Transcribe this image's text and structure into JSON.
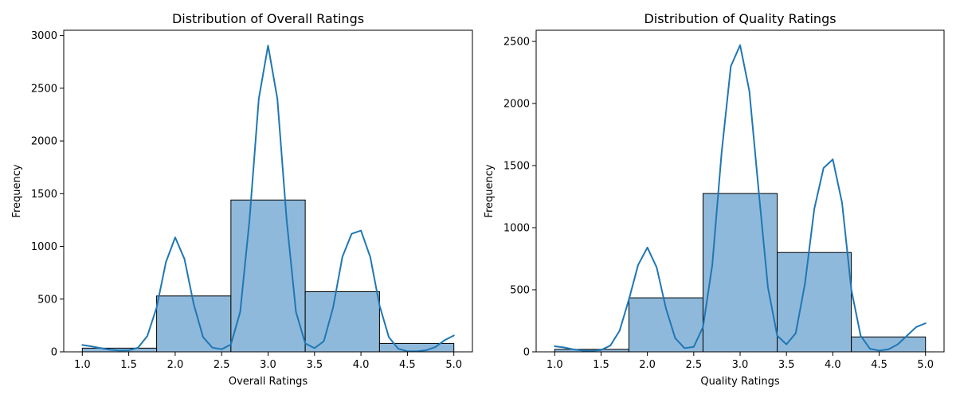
{
  "colors": {
    "bar_fill": "#8fb9db",
    "bar_edge": "#000000",
    "kde_line": "#1f77b4"
  },
  "chart_data": [
    {
      "type": "histogram",
      "title": "Distribution of Overall Ratings",
      "xlabel": "Overall Ratings",
      "ylabel": "Frequency",
      "xlim": [
        0.8,
        5.2
      ],
      "ylim": [
        0,
        3050
      ],
      "xticks": [
        1.0,
        1.5,
        2.0,
        2.5,
        3.0,
        3.5,
        4.0,
        4.5,
        5.0
      ],
      "xtick_labels": [
        "1.0",
        "1.5",
        "2.0",
        "2.5",
        "3.0",
        "3.5",
        "4.0",
        "4.5",
        "5.0"
      ],
      "yticks": [
        0,
        500,
        1000,
        1500,
        2000,
        2500,
        3000
      ],
      "ytick_labels": [
        "0",
        "500",
        "1000",
        "1500",
        "2000",
        "2500",
        "3000"
      ],
      "bins": [
        {
          "x0": 1.0,
          "x1": 1.8,
          "count": 35
        },
        {
          "x0": 1.8,
          "x1": 2.6,
          "count": 530
        },
        {
          "x0": 2.6,
          "x1": 3.4,
          "count": 1440
        },
        {
          "x0": 3.4,
          "x1": 4.2,
          "count": 570
        },
        {
          "x0": 4.2,
          "x1": 5.0,
          "count": 80
        }
      ],
      "kde": {
        "x": [
          1.0,
          1.1,
          1.2,
          1.3,
          1.4,
          1.5,
          1.6,
          1.7,
          1.8,
          1.9,
          2.0,
          2.1,
          2.2,
          2.3,
          2.4,
          2.5,
          2.6,
          2.7,
          2.8,
          2.9,
          3.0,
          3.1,
          3.2,
          3.3,
          3.4,
          3.5,
          3.6,
          3.7,
          3.8,
          3.9,
          4.0,
          4.1,
          4.2,
          4.3,
          4.4,
          4.5,
          4.6,
          4.7,
          4.8,
          4.9,
          5.0
        ],
        "y": [
          65,
          52,
          35,
          20,
          12,
          14,
          40,
          150,
          420,
          850,
          1085,
          880,
          450,
          140,
          40,
          25,
          70,
          380,
          1250,
          2400,
          2905,
          2400,
          1250,
          380,
          80,
          35,
          100,
          420,
          900,
          1120,
          1150,
          900,
          440,
          140,
          30,
          5,
          5,
          15,
          45,
          110,
          155
        ]
      }
    },
    {
      "type": "histogram",
      "title": "Distribution of Quality Ratings",
      "xlabel": "Quality Ratings",
      "ylabel": "Frequency",
      "xlim": [
        0.8,
        5.2
      ],
      "ylim": [
        0,
        2590
      ],
      "xticks": [
        1.0,
        1.5,
        2.0,
        2.5,
        3.0,
        3.5,
        4.0,
        4.5,
        5.0
      ],
      "xtick_labels": [
        "1.0",
        "1.5",
        "2.0",
        "2.5",
        "3.0",
        "3.5",
        "4.0",
        "4.5",
        "5.0"
      ],
      "yticks": [
        0,
        500,
        1000,
        1500,
        2000,
        2500
      ],
      "ytick_labels": [
        "0",
        "500",
        "1000",
        "1500",
        "2000",
        "2500"
      ],
      "bins": [
        {
          "x0": 1.0,
          "x1": 1.8,
          "count": 20
        },
        {
          "x0": 1.8,
          "x1": 2.6,
          "count": 435
        },
        {
          "x0": 2.6,
          "x1": 3.4,
          "count": 1275
        },
        {
          "x0": 3.4,
          "x1": 4.2,
          "count": 800
        },
        {
          "x0": 4.2,
          "x1": 5.0,
          "count": 120
        }
      ],
      "kde": {
        "x": [
          1.0,
          1.1,
          1.2,
          1.3,
          1.4,
          1.5,
          1.6,
          1.7,
          1.8,
          1.9,
          2.0,
          2.1,
          2.2,
          2.3,
          2.4,
          2.5,
          2.6,
          2.7,
          2.8,
          2.9,
          3.0,
          3.1,
          3.2,
          3.3,
          3.4,
          3.5,
          3.6,
          3.7,
          3.8,
          3.9,
          4.0,
          4.1,
          4.2,
          4.3,
          4.4,
          4.5,
          4.6,
          4.7,
          4.8,
          4.9,
          5.0
        ],
        "y": [
          45,
          35,
          20,
          10,
          8,
          15,
          50,
          170,
          420,
          700,
          840,
          680,
          350,
          110,
          30,
          40,
          200,
          700,
          1600,
          2300,
          2470,
          2100,
          1300,
          520,
          130,
          60,
          150,
          550,
          1150,
          1480,
          1550,
          1200,
          500,
          130,
          25,
          10,
          20,
          60,
          130,
          200,
          230
        ]
      }
    }
  ]
}
